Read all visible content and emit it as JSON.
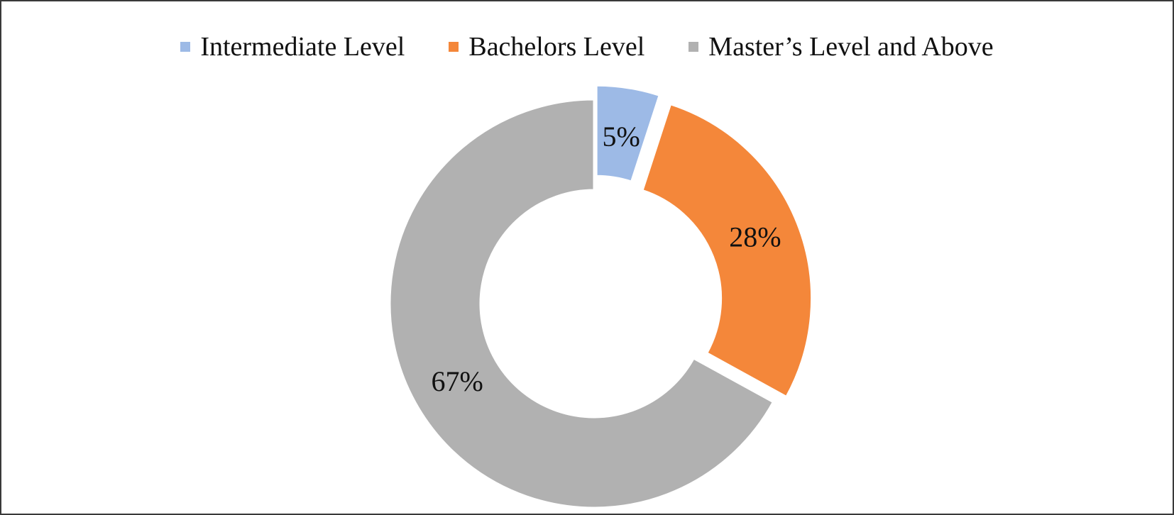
{
  "chart_data": {
    "type": "pie",
    "variant": "doughnut",
    "exploded": true,
    "legend_position": "top",
    "categories": [
      "Intermediate Level",
      "Bachelors Level",
      "Master’s Level and Above"
    ],
    "values": [
      5,
      28,
      67
    ],
    "labels": [
      "5%",
      "28%",
      "67%"
    ],
    "colors": [
      "#9dbae6",
      "#f4873a",
      "#b1b1b1"
    ]
  }
}
